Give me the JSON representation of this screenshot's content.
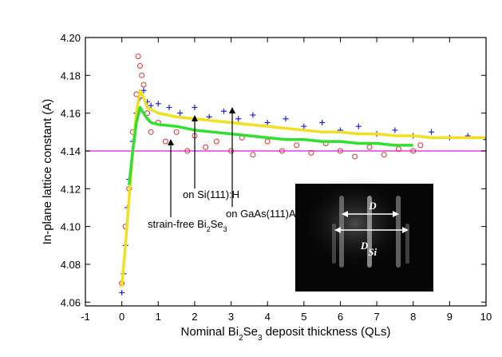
{
  "chart_data": {
    "type": "scatter",
    "x_label": [
      "Nominal Bi",
      "2",
      "Se",
      "3",
      " deposit thickness (QLs)"
    ],
    "y_label": "In-plane lattice constant (A)",
    "xlim": [
      -1,
      10
    ],
    "ylim": [
      4.058,
      4.2
    ],
    "xticks": [
      -1,
      0,
      1,
      2,
      3,
      4,
      5,
      6,
      7,
      8,
      9,
      10
    ],
    "yticks": [
      4.06,
      4.08,
      {
        "value": 4.1,
        "label": "4.10"
      },
      4.12,
      4.14,
      4.16,
      4.18,
      {
        "value": 4.2,
        "label": "4.20"
      }
    ],
    "series": [
      {
        "marker": "plus",
        "color": "#2020e0",
        "x": [
          0,
          0.05,
          0.1,
          0.15,
          0.2,
          0.3,
          0.4,
          0.5,
          0.6,
          0.7,
          0.8,
          1,
          1.3,
          1.6,
          2,
          2.4,
          2.8,
          3.2,
          3.6,
          4,
          4.5,
          5,
          5.5,
          6,
          6.5,
          7,
          7.5,
          8,
          8.5,
          9,
          9.5,
          10
        ],
        "values": [
          4.065,
          4.075,
          4.09,
          4.11,
          4.125,
          4.145,
          4.16,
          4.168,
          4.172,
          4.166,
          4.164,
          4.165,
          4.163,
          4.16,
          4.163,
          4.158,
          4.161,
          4.157,
          4.159,
          4.155,
          4.157,
          4.153,
          4.155,
          4.151,
          4.153,
          4.149,
          4.151,
          4.148,
          4.15,
          4.147,
          4.148,
          4.146
        ]
      },
      {
        "marker": "circle",
        "color": "#e03030",
        "x": [
          0,
          0.1,
          0.2,
          0.3,
          0.4,
          0.45,
          0.5,
          0.55,
          0.6,
          0.7,
          0.8,
          1,
          1.2,
          1.5,
          1.8,
          2,
          2.3,
          2.6,
          3,
          3.3,
          3.6,
          4,
          4.4,
          4.8,
          5.2,
          5.6,
          6,
          6.4,
          6.8,
          7.2,
          7.6,
          8,
          8.2
        ],
        "values": [
          4.07,
          4.1,
          4.12,
          4.15,
          4.17,
          4.19,
          4.185,
          4.18,
          4.175,
          4.16,
          4.15,
          4.155,
          4.145,
          4.15,
          4.14,
          4.148,
          4.142,
          4.145,
          4.14,
          4.147,
          4.138,
          4.145,
          4.14,
          4.143,
          4.139,
          4.144,
          4.14,
          4.137,
          4.142,
          4.138,
          4.141,
          4.14,
          4.143
        ]
      },
      {
        "marker": "line",
        "color": "#f0e020",
        "x": [
          0,
          0.1,
          0.2,
          0.3,
          0.4,
          0.5,
          0.6,
          0.7,
          0.8,
          1,
          1.5,
          2,
          2.5,
          3,
          3.5,
          4,
          4.5,
          5,
          5.5,
          6,
          6.5,
          7,
          7.5,
          8,
          8.5,
          9,
          9.5,
          10
        ],
        "values": [
          4.068,
          4.09,
          4.115,
          4.14,
          4.16,
          4.172,
          4.168,
          4.163,
          4.162,
          4.16,
          4.158,
          4.157,
          4.156,
          4.155,
          4.154,
          4.153,
          4.152,
          4.151,
          4.15,
          4.15,
          4.149,
          4.149,
          4.148,
          4.148,
          4.147,
          4.147,
          4.147,
          4.147
        ]
      },
      {
        "marker": "line",
        "color": "#30e030",
        "x": [
          0.2,
          0.3,
          0.4,
          0.5,
          0.6,
          0.7,
          0.8,
          1,
          1.5,
          2,
          2.5,
          3,
          3.5,
          4,
          4.5,
          5,
          5.5,
          6,
          6.5,
          7,
          7.5,
          8
        ],
        "values": [
          4.122,
          4.14,
          4.155,
          4.163,
          4.16,
          4.157,
          4.155,
          4.154,
          4.153,
          4.151,
          4.15,
          4.149,
          4.148,
          4.147,
          4.146,
          4.146,
          4.145,
          4.145,
          4.144,
          4.144,
          4.143,
          4.143
        ]
      }
    ],
    "reference_line": {
      "value": 4.14,
      "color": "#e040e0"
    },
    "annotations": [
      {
        "text": [
          "on GaAs(111)A"
        ]
      },
      {
        "text": [
          "on Si(111):H"
        ]
      },
      {
        "text": [
          "strain-free Bi",
          "2",
          "Se",
          "3"
        ]
      }
    ],
    "inset_labels": [
      [
        "D"
      ],
      [
        "D",
        "Si"
      ]
    ]
  }
}
